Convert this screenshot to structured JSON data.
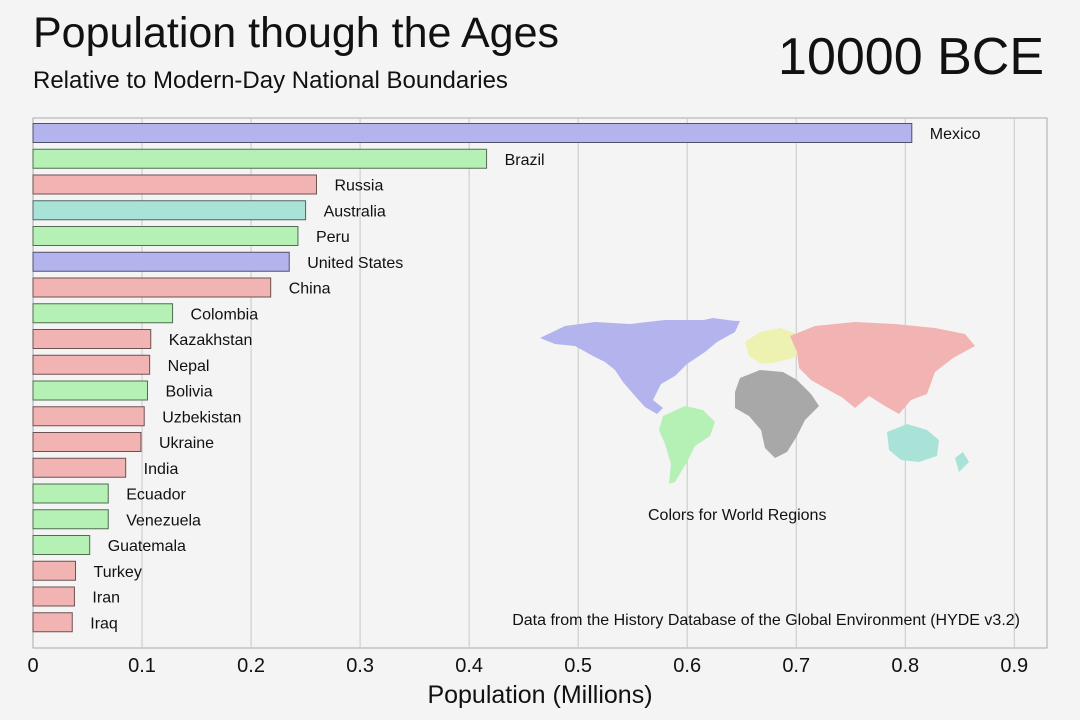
{
  "chart_data": {
    "type": "bar",
    "orientation": "horizontal",
    "title": "Population though the Ages",
    "subtitle": "Relative to Modern-Day National Boundaries",
    "period": "10000 BCE",
    "xlabel": "Population (Millions)",
    "xlim": [
      0,
      0.93
    ],
    "ticks": [
      "0",
      "0.1",
      "0.2",
      "0.3",
      "0.4",
      "0.5",
      "0.6",
      "0.7",
      "0.8",
      "0.9"
    ],
    "grid": true,
    "categories": [
      "Mexico",
      "Brazil",
      "Russia",
      "Australia",
      "Peru",
      "United States",
      "China",
      "Colombia",
      "Kazakhstan",
      "Nepal",
      "Bolivia",
      "Uzbekistan",
      "Ukraine",
      "India",
      "Ecuador",
      "Venezuela",
      "Guatemala",
      "Turkey",
      "Iran",
      "Iraq"
    ],
    "values": [
      0.806,
      0.416,
      0.26,
      0.25,
      0.243,
      0.235,
      0.218,
      0.128,
      0.108,
      0.107,
      0.105,
      0.102,
      0.099,
      0.085,
      0.069,
      0.069,
      0.052,
      0.039,
      0.038,
      0.036
    ],
    "regions": [
      "north-america",
      "south-america",
      "asia",
      "oceania",
      "south-america",
      "north-america",
      "asia",
      "south-america",
      "asia",
      "asia",
      "south-america",
      "asia",
      "asia",
      "asia",
      "south-america",
      "south-america",
      "south-america",
      "asia",
      "asia",
      "asia"
    ]
  },
  "region_colors": {
    "north-america": "#b3b3ee",
    "south-america": "#b5f0b5",
    "asia": "#f2b3b3",
    "oceania": "#a9e3d8",
    "europe": "#eef2b0",
    "africa": "#a8a8a8"
  },
  "map": {
    "caption": "Colors for World Regions"
  },
  "source_note": "Data from the History Database of the Global Environment (HYDE v3.2)"
}
